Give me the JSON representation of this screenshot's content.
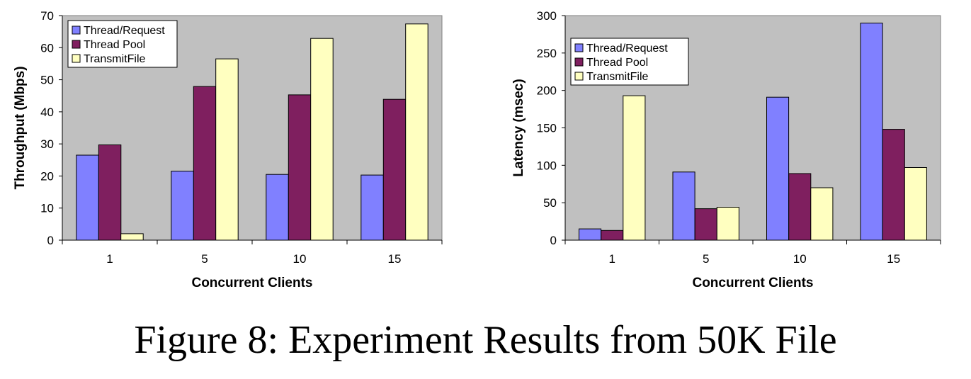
{
  "caption": "Figure 8: Experiment Results from 50K File",
  "chart_data": [
    {
      "type": "bar",
      "xlabel": "Concurrent Clients",
      "ylabel": "Throughput (Mbps)",
      "categories": [
        "1",
        "5",
        "10",
        "15"
      ],
      "ylim": [
        0,
        70
      ],
      "yticks": [
        0,
        10,
        20,
        30,
        40,
        50,
        60,
        70
      ],
      "grid": false,
      "legend_position": "top-left",
      "series": [
        {
          "name": "Thread/Request",
          "color": "#8080ff",
          "values": [
            26.5,
            21.5,
            20.5,
            20.3
          ]
        },
        {
          "name": "Thread Pool",
          "color": "#7f1f5f",
          "values": [
            29.7,
            47.9,
            45.3,
            43.9
          ]
        },
        {
          "name": "TransmitFile",
          "color": "#ffffc0",
          "values": [
            2.0,
            56.5,
            62.9,
            67.4
          ]
        }
      ]
    },
    {
      "type": "bar",
      "xlabel": "Concurrent Clients",
      "ylabel": "Latency (msec)",
      "categories": [
        "1",
        "5",
        "10",
        "15"
      ],
      "ylim": [
        0,
        300
      ],
      "yticks": [
        0,
        50,
        100,
        150,
        200,
        250,
        300
      ],
      "grid": false,
      "legend_position": "top-left",
      "series": [
        {
          "name": "Thread/Request",
          "color": "#8080ff",
          "values": [
            15,
            91,
            191,
            290
          ]
        },
        {
          "name": "Thread Pool",
          "color": "#7f1f5f",
          "values": [
            13,
            42,
            89,
            148
          ]
        },
        {
          "name": "TransmitFile",
          "color": "#ffffc0",
          "values": [
            193,
            44,
            70,
            97
          ]
        }
      ]
    }
  ]
}
